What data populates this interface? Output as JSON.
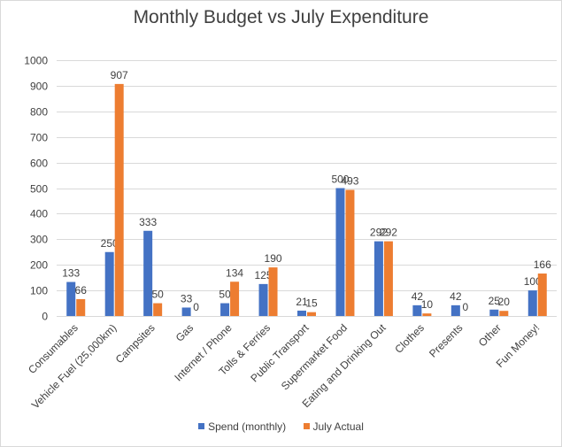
{
  "chart_data": {
    "type": "bar",
    "title": "Monthly Budget vs July Expenditure",
    "categories": [
      "Consumables",
      "Vehicle Fuel (25,000km)",
      "Campsites",
      "Gas",
      "Internet / Phone",
      "Tolls & Ferries",
      "Public Transport",
      "Supermarket Food",
      "Eating and Drinking Out",
      "Clothes",
      "Presents",
      "Other",
      "Fun Money!"
    ],
    "series": [
      {
        "name": "Spend (monthly)",
        "color": "#4472c4",
        "values": [
          133,
          250,
          333,
          33,
          50,
          125,
          21,
          500,
          292,
          42,
          42,
          25,
          100
        ]
      },
      {
        "name": "July Actual",
        "color": "#ed7d31",
        "values": [
          66,
          907,
          50,
          0,
          134,
          190,
          15,
          493,
          292,
          10,
          0,
          20,
          166
        ]
      }
    ],
    "ylim": [
      0,
      1000
    ],
    "yticks": [
      0,
      100,
      200,
      300,
      400,
      500,
      600,
      700,
      800,
      900,
      1000
    ],
    "grid": true,
    "legend": "bottom"
  }
}
